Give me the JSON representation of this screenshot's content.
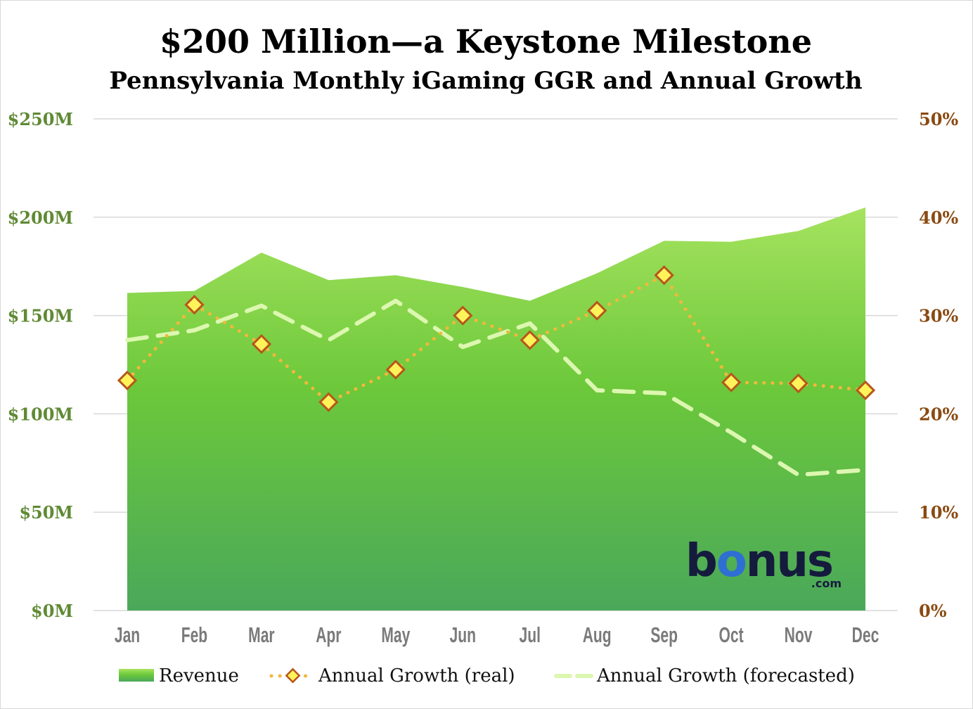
{
  "chart_data": {
    "type": "area",
    "title": "$200 Million—a Keystone Milestone",
    "subtitle": "Pennsylvania Monthly iGaming GGR and Annual Growth",
    "categories": [
      "Jan",
      "Feb",
      "Mar",
      "Apr",
      "May",
      "Jun",
      "Jul",
      "Aug",
      "Sep",
      "Oct",
      "Nov",
      "Dec"
    ],
    "y_left": {
      "range": [
        0,
        250
      ],
      "ticks": [
        0,
        50,
        100,
        150,
        200,
        250
      ],
      "tick_labels": [
        "$0M",
        "$50M",
        "$100M",
        "$150M",
        "$200M",
        "$250M"
      ]
    },
    "y_right": {
      "range": [
        0,
        50
      ],
      "ticks": [
        0,
        10,
        20,
        30,
        40,
        50
      ],
      "tick_labels": [
        "0%",
        "10%",
        "20%",
        "30%",
        "40%",
        "50%"
      ]
    },
    "series": [
      {
        "name": "Revenue",
        "kind": "area",
        "axis": "left",
        "values": [
          161.5,
          162.5,
          182,
          168,
          170.5,
          164.5,
          157.5,
          171.5,
          188,
          187.5,
          193,
          205
        ]
      },
      {
        "name": "Annual Growth (real)",
        "kind": "dotted-line-markers",
        "axis": "right",
        "values": [
          23.4,
          31.1,
          27.1,
          21.2,
          24.5,
          30.0,
          27.5,
          30.5,
          34.1,
          23.2,
          23.1,
          22.4
        ]
      },
      {
        "name": "Annual Growth (forecasted)",
        "kind": "dashed-line",
        "axis": "right",
        "values": [
          27.5,
          28.5,
          31.0,
          27.5,
          31.5,
          26.8,
          29.2,
          22.4,
          22.1,
          18.1,
          13.8,
          14.3
        ]
      }
    ],
    "grid": true,
    "legend_position": "bottom"
  },
  "colors": {
    "area_top": "#a6e35f",
    "area_mid": "#6cc83a",
    "area_bottom": "#4aa85a",
    "real_line": "#f2b83c",
    "marker_fill": "#fff35a",
    "marker_stroke": "#b8561c",
    "forecast_line": "#dcf7b0",
    "grid": "#d9d9d9"
  },
  "logo": {
    "main": "bonus",
    "sub": ".com",
    "accent_color": "#2f6fd4"
  }
}
